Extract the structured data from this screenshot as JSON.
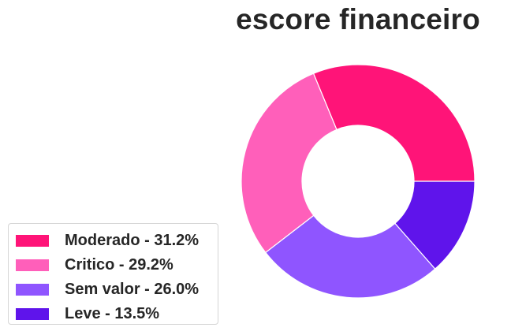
{
  "chart_data": {
    "type": "pie",
    "title": "escore financeiro",
    "donut": true,
    "legend_position": "lower-left",
    "categories": [
      "Moderado",
      "Critico",
      "Sem valor",
      "Leve"
    ],
    "values": [
      31.2,
      29.2,
      26.0,
      13.5
    ],
    "colors": [
      "#ff1478",
      "#ff5fba",
      "#8f55ff",
      "#5f14eb"
    ],
    "legend_entries": [
      "Moderado - 31.2%",
      "Critico - 29.2%",
      "Sem valor - 26.0%",
      "Leve - 13.5%"
    ]
  }
}
